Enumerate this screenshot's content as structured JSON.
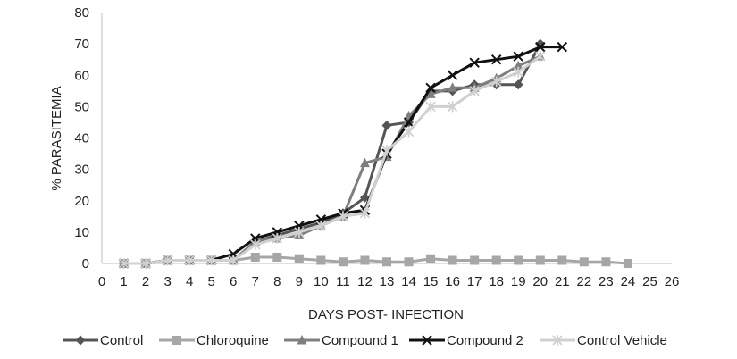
{
  "chart_data": {
    "type": "line",
    "title": "",
    "xlabel": "DAYS POST- INFECTION",
    "ylabel": "% PARASITEMIA",
    "xlim": [
      0,
      26
    ],
    "ylim": [
      0,
      80
    ],
    "x_ticks": [
      0,
      1,
      2,
      3,
      4,
      5,
      6,
      7,
      8,
      9,
      10,
      11,
      12,
      13,
      14,
      15,
      16,
      17,
      18,
      19,
      20,
      21,
      22,
      23,
      24,
      25,
      26
    ],
    "y_ticks": [
      0,
      10,
      20,
      30,
      40,
      50,
      60,
      70,
      80
    ],
    "grid": false,
    "legend_position": "bottom",
    "series": [
      {
        "name": "Control",
        "color": "#555555",
        "marker": "diamond",
        "x": [
          1,
          2,
          3,
          4,
          5,
          6,
          7,
          8,
          9,
          10,
          11,
          12,
          13,
          14,
          15,
          16,
          17,
          18,
          19,
          20
        ],
        "values": [
          0,
          0,
          1,
          1,
          1,
          1,
          7,
          9,
          11,
          13,
          16,
          21,
          44,
          45,
          55,
          55,
          57,
          57,
          57,
          70
        ]
      },
      {
        "name": "Chloroquine",
        "color": "#a6a6a6",
        "marker": "square",
        "x": [
          1,
          2,
          3,
          4,
          5,
          6,
          7,
          8,
          9,
          10,
          11,
          12,
          13,
          14,
          15,
          16,
          17,
          18,
          19,
          20,
          21,
          22,
          23,
          24
        ],
        "values": [
          0,
          0,
          1,
          1,
          1,
          1,
          2,
          2,
          1.5,
          1,
          0.5,
          1,
          0.5,
          0.5,
          1.5,
          1,
          1,
          1,
          1,
          1,
          1,
          0.5,
          0.5,
          0
        ]
      },
      {
        "name": "Compound 1",
        "color": "#7f7f7f",
        "marker": "triangle",
        "x": [
          1,
          2,
          3,
          4,
          5,
          6,
          7,
          8,
          9,
          10,
          11,
          12,
          13,
          14,
          15,
          16,
          17,
          18,
          19,
          20
        ],
        "values": [
          0,
          0,
          1,
          1,
          1,
          1,
          7,
          8,
          9,
          12,
          15,
          32,
          34,
          47,
          54,
          56,
          56,
          59,
          63,
          66
        ]
      },
      {
        "name": "Compound 2",
        "color": "#111111",
        "marker": "x",
        "x": [
          1,
          2,
          3,
          4,
          5,
          6,
          7,
          8,
          9,
          10,
          11,
          12,
          13,
          14,
          15,
          16,
          17,
          18,
          19,
          20,
          21
        ],
        "values": [
          0,
          0,
          1,
          1,
          1,
          3,
          8,
          10,
          12,
          14,
          16,
          17,
          35,
          45,
          56,
          60,
          64,
          65,
          66,
          69,
          69
        ]
      },
      {
        "name": "Control Vehicle",
        "color": "#d0d0d0",
        "marker": "star",
        "x": [
          1,
          2,
          3,
          4,
          5,
          6,
          7,
          8,
          9,
          10,
          11,
          12,
          13,
          14,
          15,
          16,
          17,
          18,
          19,
          20
        ],
        "values": [
          0,
          0,
          1,
          1,
          1,
          1,
          6,
          8,
          10,
          12,
          15,
          16,
          36,
          42,
          50,
          50,
          55,
          58,
          61,
          66
        ]
      }
    ]
  }
}
